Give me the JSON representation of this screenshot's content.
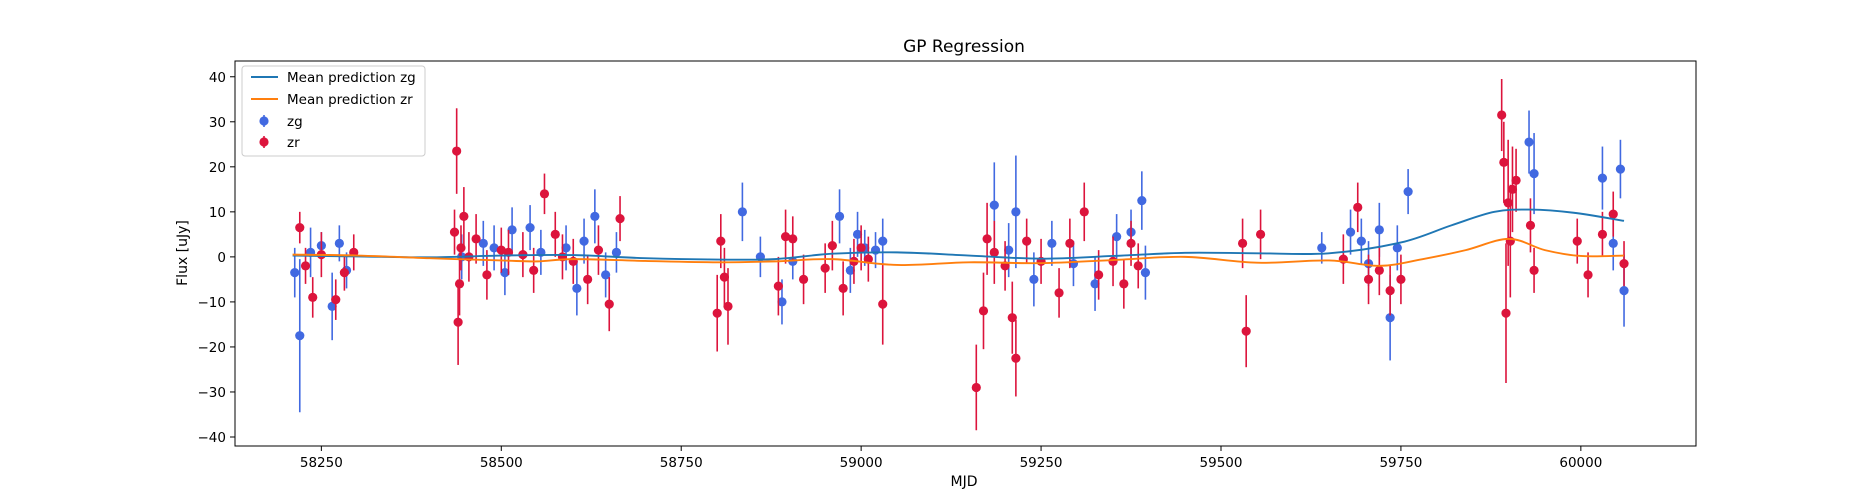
{
  "chart_data": {
    "type": "scatter",
    "title": "GP Regression",
    "xlabel": "MJD",
    "ylabel": "Flux [uJy]",
    "xlim": [
      58130,
      60160
    ],
    "ylim": [
      -42,
      43.5
    ],
    "xticks": [
      58250,
      58500,
      58750,
      59000,
      59250,
      59500,
      59750,
      60000
    ],
    "yticks": [
      -40,
      -30,
      -20,
      -10,
      0,
      10,
      20,
      30,
      40
    ],
    "grid": false,
    "legend_position": "top-left",
    "series": [
      {
        "name": "Mean prediction zg",
        "kind": "line",
        "color": "#1f77b4",
        "x": [
          58210,
          58300,
          58400,
          58500,
          58600,
          58700,
          58800,
          58880,
          58960,
          59050,
          59150,
          59250,
          59350,
          59450,
          59550,
          59650,
          59750,
          59820,
          59880,
          59930,
          59990,
          60060
        ],
        "y": [
          0.3,
          0.1,
          -0.1,
          0.3,
          0.4,
          -0.3,
          -0.6,
          -0.5,
          0.7,
          1.0,
          0.3,
          -0.4,
          0.2,
          0.9,
          0.8,
          0.8,
          3.2,
          7.0,
          10.0,
          10.5,
          9.8,
          8.0
        ]
      },
      {
        "name": "Mean prediction zr",
        "kind": "line",
        "color": "#ff7f0e",
        "x": [
          58210,
          58300,
          58400,
          58500,
          58550,
          58600,
          58700,
          58800,
          58880,
          58960,
          59050,
          59150,
          59250,
          59350,
          59450,
          59550,
          59650,
          59720,
          59780,
          59840,
          59900,
          59950,
          60000,
          60060
        ],
        "y": [
          0.5,
          0.3,
          -0.3,
          -0.8,
          -1.0,
          -0.5,
          -0.9,
          -1.2,
          -1.0,
          -0.5,
          -1.8,
          -1.2,
          -1.4,
          -0.7,
          0.0,
          -1.3,
          -0.8,
          -2.0,
          -0.5,
          1.5,
          4.0,
          1.5,
          0.2,
          0.3
        ]
      },
      {
        "name": "zg",
        "kind": "errorbar",
        "color": "#4169e1",
        "x": [
          58213,
          58220,
          58235,
          58250,
          58265,
          58275,
          58285,
          58445,
          58475,
          58490,
          58505,
          58515,
          58540,
          58555,
          58590,
          58605,
          58615,
          58630,
          58645,
          58660,
          58835,
          58860,
          58890,
          58905,
          58970,
          58985,
          58995,
          59005,
          59020,
          59030,
          59185,
          59205,
          59215,
          59240,
          59265,
          59295,
          59325,
          59355,
          59375,
          59390,
          59395,
          59640,
          59680,
          59695,
          59705,
          59720,
          59735,
          59745,
          59760,
          59935,
          59928,
          60030,
          60045,
          60055,
          60060
        ],
        "y": [
          -3.5,
          -17.5,
          1.0,
          2.5,
          -11.0,
          3.0,
          -3.0,
          0.0,
          3.0,
          2.0,
          -3.5,
          6.0,
          6.5,
          1.0,
          2.0,
          -7.0,
          3.5,
          9.0,
          -4.0,
          1.0,
          10.0,
          0.0,
          -10.0,
          -1.0,
          9.0,
          -3.0,
          5.0,
          2.0,
          1.5,
          3.5,
          11.5,
          1.5,
          10.0,
          -5.0,
          3.0,
          -1.5,
          -6.0,
          4.5,
          5.5,
          12.5,
          -3.5,
          2.0,
          5.5,
          3.5,
          -1.5,
          6.0,
          -13.5,
          2.0,
          14.5,
          18.5,
          25.5,
          17.5,
          3.0,
          19.5,
          -7.5
        ],
        "yerr": [
          5.5,
          17.0,
          5.5,
          3.0,
          7.5,
          4.0,
          4.0,
          5.0,
          5.0,
          5.0,
          5.0,
          5.0,
          5.0,
          5.0,
          5.0,
          6.0,
          5.0,
          6.0,
          5.0,
          4.5,
          6.5,
          4.5,
          5.0,
          4.0,
          6.0,
          5.0,
          5.0,
          4.0,
          4.0,
          5.0,
          9.5,
          6.0,
          12.5,
          6.0,
          5.0,
          5.0,
          6.0,
          5.0,
          5.0,
          6.5,
          6.0,
          3.5,
          5.0,
          5.0,
          5.0,
          6.0,
          9.5,
          5.0,
          5.0,
          9.0,
          7.0,
          7.0,
          6.0,
          6.5,
          8.0
        ]
      },
      {
        "name": "zr",
        "kind": "errorbar",
        "color": "#dc143c",
        "x": [
          58220,
          58228,
          58238,
          58250,
          58270,
          58282,
          58295,
          58435,
          58438,
          58440,
          58442,
          58444,
          58448,
          58455,
          58465,
          58480,
          58500,
          58510,
          58530,
          58545,
          58560,
          58575,
          58585,
          58600,
          58620,
          58635,
          58650,
          58665,
          58800,
          58805,
          58810,
          58815,
          58885,
          58895,
          58905,
          58920,
          58950,
          58960,
          58975,
          58990,
          59000,
          59010,
          59030,
          59160,
          59170,
          59175,
          59185,
          59200,
          59210,
          59215,
          59230,
          59250,
          59275,
          59290,
          59310,
          59330,
          59350,
          59365,
          59375,
          59385,
          59530,
          59535,
          59555,
          59670,
          59690,
          59705,
          59720,
          59735,
          59750,
          59890,
          59893,
          59896,
          59899,
          59902,
          59905,
          59910,
          59930,
          59935,
          59995,
          60010,
          60030,
          60045,
          60060
        ],
        "y": [
          6.5,
          -2.0,
          -9.0,
          0.5,
          -9.5,
          -3.5,
          1.0,
          5.5,
          23.5,
          -14.5,
          -6.0,
          2.0,
          9.0,
          0.0,
          4.0,
          -4.0,
          1.5,
          1.0,
          0.5,
          -3.0,
          14.0,
          5.0,
          0.0,
          -1.0,
          -5.0,
          1.5,
          -10.5,
          8.5,
          -12.5,
          3.5,
          -4.5,
          -11.0,
          -6.5,
          4.5,
          4.0,
          -5.0,
          -2.5,
          2.5,
          -7.0,
          -1.0,
          2.0,
          -0.5,
          -10.5,
          -29.0,
          -12.0,
          4.0,
          1.0,
          -2.0,
          -13.5,
          -22.5,
          3.5,
          -1.0,
          -8.0,
          3.0,
          10.0,
          -4.0,
          -1.0,
          -6.0,
          3.0,
          -2.0,
          3.0,
          -16.5,
          5.0,
          -0.5,
          11.0,
          -5.0,
          -3.0,
          -7.5,
          -5.0,
          31.5,
          21.0,
          -12.5,
          12.0,
          3.5,
          15.0,
          17.0,
          7.0,
          -3.0,
          3.5,
          -4.0,
          5.0,
          9.5,
          -1.5
        ],
        "yerr": [
          3.5,
          4.0,
          4.5,
          5.0,
          4.5,
          4.0,
          4.0,
          5.0,
          9.5,
          9.5,
          7.0,
          5.0,
          6.5,
          5.5,
          5.5,
          5.5,
          5.0,
          5.0,
          5.0,
          5.0,
          4.5,
          5.0,
          5.0,
          5.0,
          5.5,
          5.5,
          6.0,
          5.0,
          8.5,
          6.0,
          6.5,
          8.5,
          6.5,
          6.0,
          5.0,
          5.5,
          5.5,
          5.5,
          6.0,
          5.0,
          5.0,
          5.0,
          9.0,
          9.5,
          8.5,
          8.0,
          7.0,
          5.5,
          8.0,
          8.5,
          5.0,
          5.0,
          5.5,
          5.5,
          6.5,
          5.5,
          5.5,
          5.5,
          5.0,
          5.0,
          5.5,
          8.0,
          5.5,
          5.5,
          5.5,
          5.5,
          5.5,
          5.5,
          5.5,
          8.0,
          9.0,
          15.5,
          14.0,
          12.5,
          9.5,
          7.0,
          6.0,
          5.0,
          5.0,
          5.0,
          5.0,
          5.0,
          5.0
        ]
      }
    ]
  }
}
